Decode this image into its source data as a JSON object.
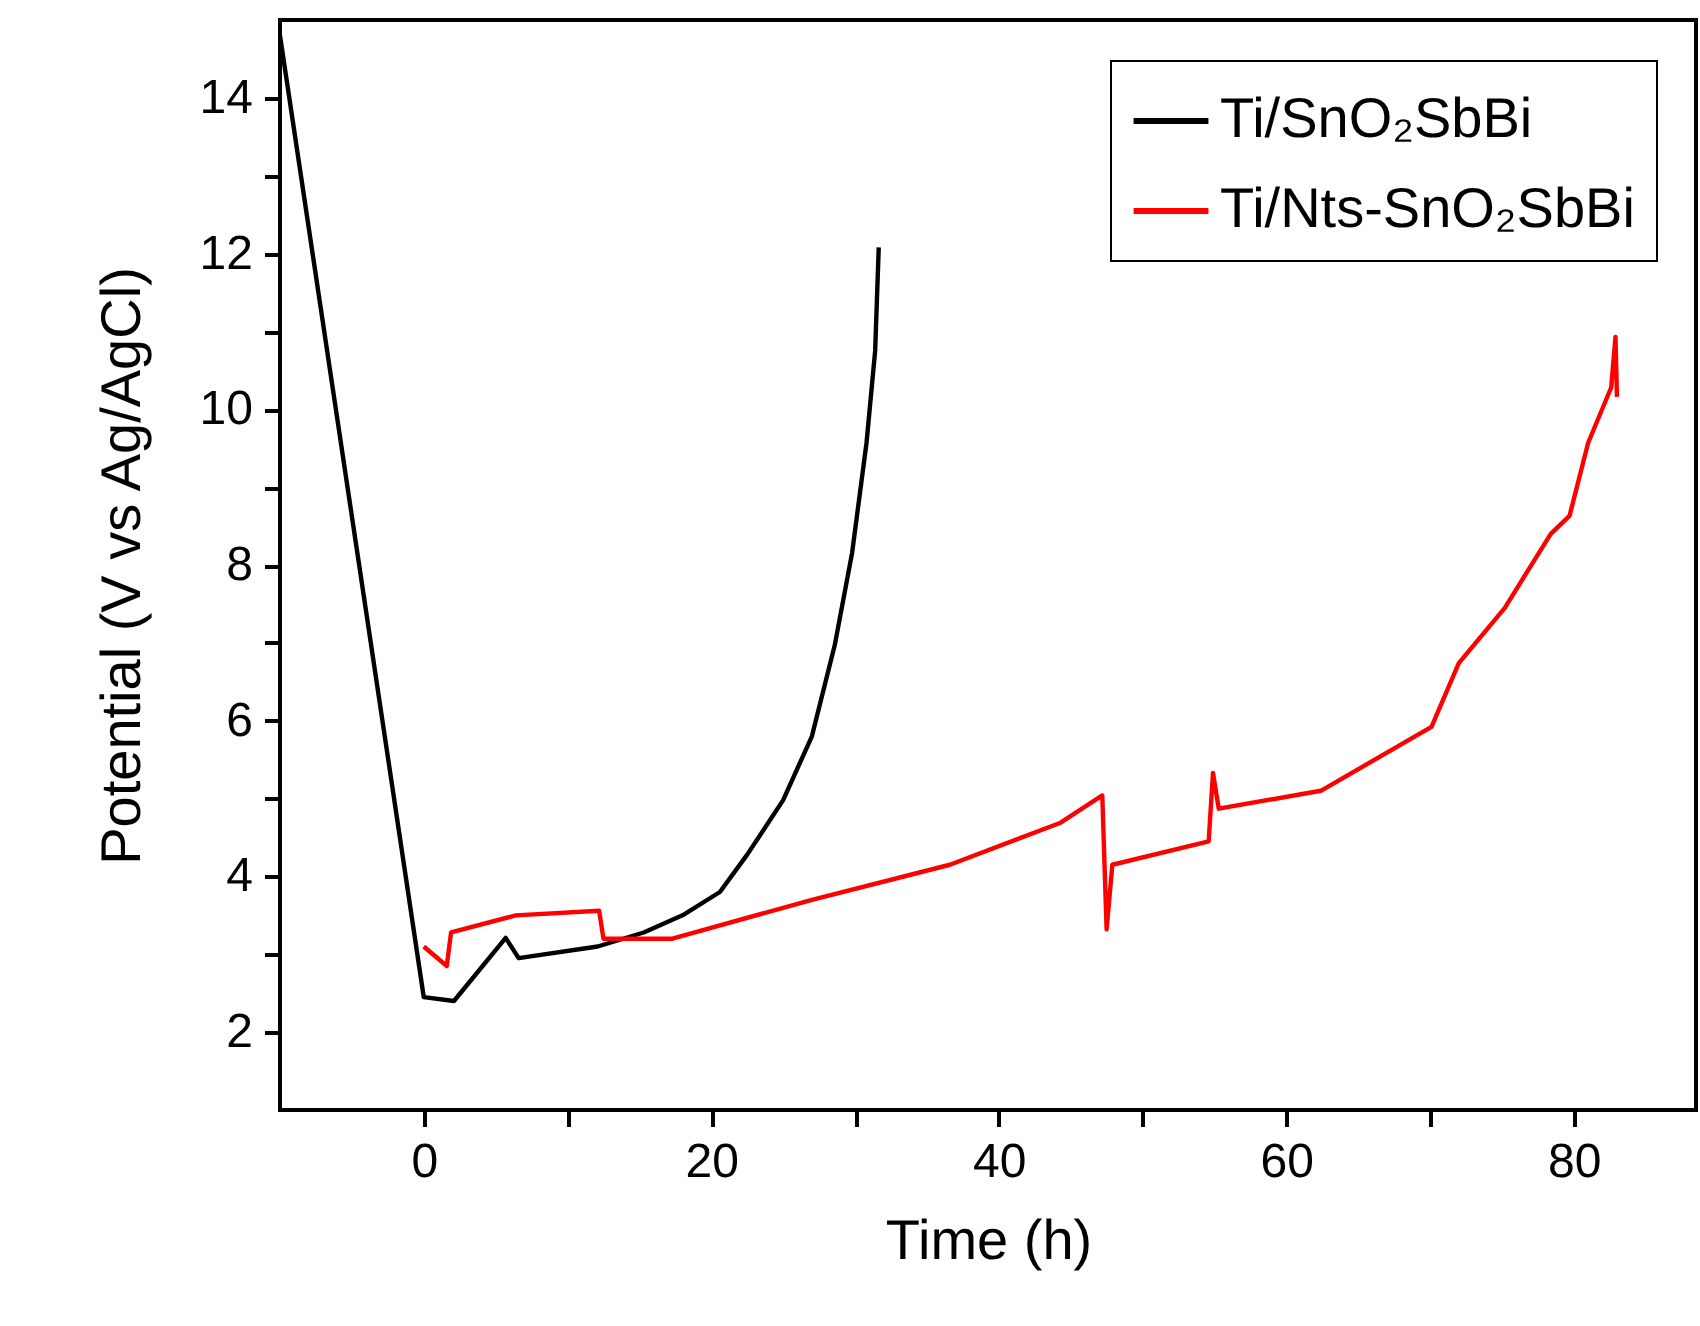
{
  "chart_data": {
    "type": "line",
    "xlabel": "Time (h)",
    "ylabel": "Potential (V vs Ag/AgCl)",
    "xlim": [
      -10,
      88.5
    ],
    "ylim": [
      1,
      15
    ],
    "xticks": [
      0,
      {
        "value": 10,
        "label": null
      },
      20,
      {
        "value": 30,
        "label": null
      },
      40,
      {
        "value": 50,
        "label": null
      },
      60,
      {
        "value": 70,
        "label": null
      },
      80
    ],
    "yticks": [
      2,
      {
        "value": 3,
        "label": null
      },
      4,
      {
        "value": 5,
        "label": null
      },
      6,
      {
        "value": 7,
        "label": null
      },
      8,
      {
        "value": 9,
        "label": null
      },
      10,
      {
        "value": 11,
        "label": null
      },
      12,
      {
        "value": 13,
        "label": null
      },
      14
    ],
    "legend": "top right",
    "grid": false,
    "marker": "none",
    "line_style": "solid",
    "series": [
      {
        "name": "Ti/SnO₂SbBi",
        "color": "#000000",
        "x": [
          -10,
          0,
          2.1,
          5.7,
          6.6,
          12.1,
          15.3,
          18,
          20.6,
          22.5,
          25,
          27,
          28.6,
          29.8,
          30.8,
          31.4,
          31.65
        ],
        "values": [
          14.8,
          2.45,
          2.4,
          3.21,
          2.95,
          3.1,
          3.28,
          3.5,
          3.8,
          4.28,
          4.98,
          5.8,
          6.98,
          8.16,
          9.57,
          10.75,
          12.08
        ]
      },
      {
        "name": "Ti/Nts-SnO₂SbBi",
        "color": "#ff0000",
        "x": [
          0,
          1.6,
          1.9,
          6.4,
          12.2,
          12.5,
          17.3,
          27,
          36.6,
          44.3,
          47.2,
          47.5,
          47.9,
          54.6,
          54.9,
          55.3,
          62.4,
          70.1,
          72,
          75.2,
          78.4,
          79.7,
          81,
          82.6,
          82.9,
          83
        ],
        "values": [
          3.1,
          2.85,
          3.28,
          3.5,
          3.56,
          3.2,
          3.2,
          3.7,
          4.15,
          4.69,
          5.04,
          3.32,
          4.15,
          4.45,
          5.33,
          4.87,
          5.1,
          5.92,
          6.74,
          7.45,
          8.4,
          8.63,
          9.57,
          10.28,
          10.93,
          10.16
        ]
      }
    ]
  }
}
